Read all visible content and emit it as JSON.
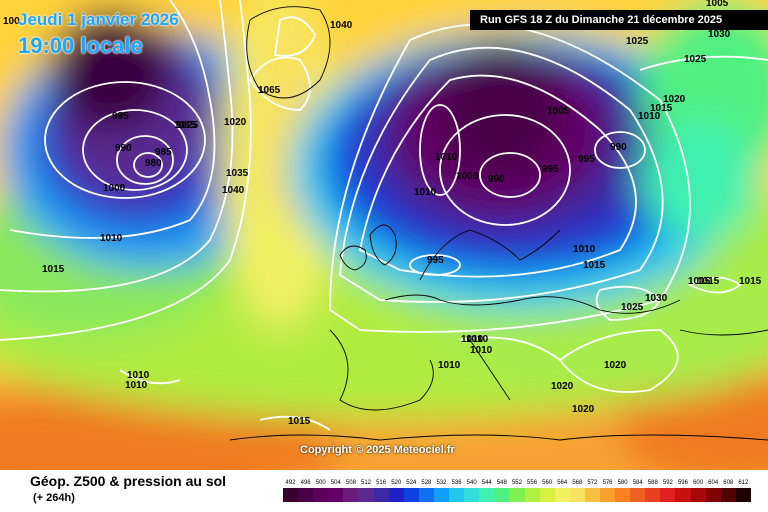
{
  "header": {
    "valid_date": "Jeudi 1 janvier 2026",
    "valid_time": "19:00 locale",
    "run_info": "Run GFS 18 Z du Dimanche 21 décembre 2025"
  },
  "footer": {
    "product": "Géop. Z500 & pression au sol",
    "lead": "(+ 264h)",
    "copyright": "Copyright © 2025 Meteociel.fr"
  },
  "scale": {
    "values": [
      "492",
      "496",
      "500",
      "504",
      "508",
      "512",
      "516",
      "520",
      "524",
      "528",
      "532",
      "536",
      "540",
      "544",
      "548",
      "552",
      "556",
      "560",
      "564",
      "568",
      "572",
      "576",
      "580",
      "584",
      "588",
      "592",
      "596",
      "600",
      "604",
      "608",
      "612"
    ],
    "colors": [
      "#3a0030",
      "#4a0048",
      "#5a0058",
      "#620066",
      "#6a1a7a",
      "#5a2a90",
      "#3a2aa8",
      "#2020c8",
      "#1040e0",
      "#1070f0",
      "#10a0f8",
      "#20c8f0",
      "#30e0d8",
      "#40f0b0",
      "#50f080",
      "#80f050",
      "#b0f040",
      "#d8f040",
      "#f0f060",
      "#f8e060",
      "#f8c040",
      "#f8a030",
      "#f88020",
      "#f06020",
      "#e84020",
      "#e02020",
      "#c81010",
      "#a80808",
      "#800404",
      "#500202",
      "#200000"
    ]
  },
  "isobar_labels": [
    "100",
    "1040",
    "995",
    "990",
    "980",
    "985",
    "1000",
    "1010",
    "1015",
    "1025",
    "1020",
    "1065",
    "1035",
    "1040",
    "1010",
    "1010",
    "1000",
    "990",
    "995",
    "1005",
    "995",
    "990",
    "1010",
    "1015",
    "1025",
    "1030",
    "1025",
    "1015",
    "1010",
    "1020",
    "1005",
    "995",
    "1010",
    "1015",
    "1030",
    "1025",
    "1015",
    "1015",
    "1010",
    "1010",
    "1010",
    "1020",
    "1020",
    "1020",
    "1015",
    "1010",
    "1010",
    "1015"
  ]
}
